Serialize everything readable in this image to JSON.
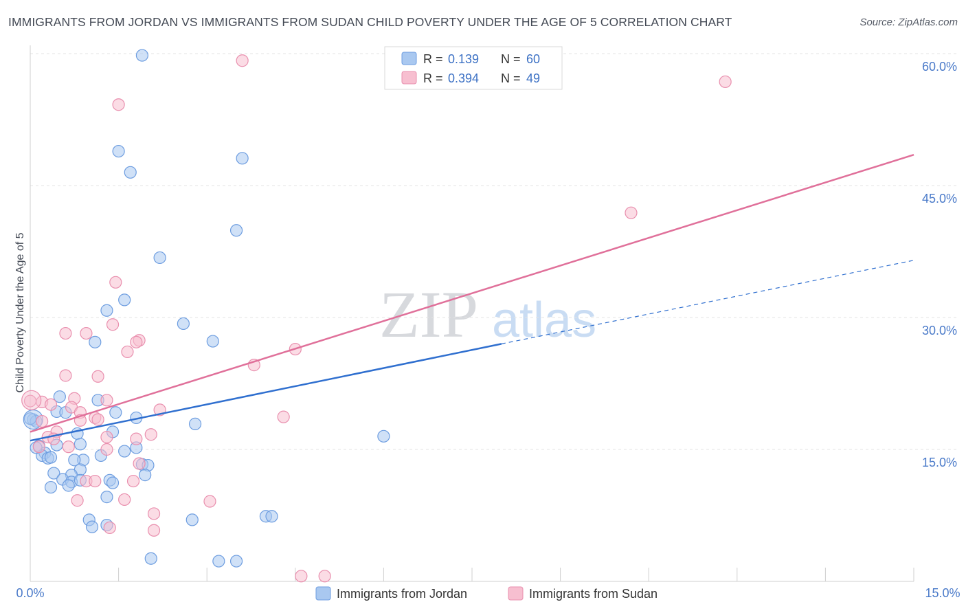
{
  "title": "IMMIGRANTS FROM JORDAN VS IMMIGRANTS FROM SUDAN CHILD POVERTY UNDER THE AGE OF 5 CORRELATION CHART",
  "source": "Source: ZipAtlas.com",
  "watermark": {
    "zip": "ZIP",
    "atlas": "atlas"
  },
  "colors": {
    "jordan_fill": "#a9c8f0",
    "jordan_stroke": "#6d9de0",
    "jordan_line": "#2f6fcf",
    "sudan_fill": "#f7bfd0",
    "sudan_stroke": "#e98fae",
    "sudan_line": "#e0709a",
    "tick_text": "#4a7ac9"
  },
  "legend": {
    "rows": [
      {
        "r_label": "R =",
        "r_value": "0.139",
        "n_label": "N =",
        "n_value": "60"
      },
      {
        "r_label": "R =",
        "r_value": "0.394",
        "n_label": "N =",
        "n_value": "49"
      }
    ]
  },
  "chart_data": {
    "type": "scatter",
    "xlabel": "",
    "ylabel": "Child Poverty Under the Age of 5",
    "xlim": [
      0,
      15
    ],
    "ylim": [
      0,
      60
    ],
    "x_tick_labels": [
      "0.0%",
      "15.0%"
    ],
    "y_ticks": [
      15,
      30,
      45,
      60
    ],
    "y_tick_labels": [
      "15.0%",
      "30.0%",
      "45.0%",
      "60.0%"
    ],
    "series": [
      {
        "name": "Immigrants from Jordan",
        "r": 0.139,
        "n": 60,
        "trend": {
          "x0": 0,
          "y0": 16.0,
          "x1": 8.0,
          "y1": 27.0,
          "dash_x_end": 15,
          "dash_y_end": 36.5
        },
        "points": [
          [
            1.9,
            59.8
          ],
          [
            1.5,
            48.9
          ],
          [
            3.6,
            48.1
          ],
          [
            1.7,
            46.5
          ],
          [
            3.5,
            39.9
          ],
          [
            2.2,
            36.8
          ],
          [
            1.6,
            32.0
          ],
          [
            1.3,
            30.8
          ],
          [
            2.6,
            29.3
          ],
          [
            3.1,
            27.3
          ],
          [
            1.1,
            27.2
          ],
          [
            0.5,
            21.0
          ],
          [
            1.15,
            20.6
          ],
          [
            0.45,
            19.3
          ],
          [
            0.6,
            19.2
          ],
          [
            1.45,
            19.2
          ],
          [
            1.8,
            18.6
          ],
          [
            0.05,
            18.4
          ],
          [
            0.1,
            18.2
          ],
          [
            2.8,
            17.9
          ],
          [
            1.4,
            17.0
          ],
          [
            0.8,
            16.8
          ],
          [
            6.0,
            16.5
          ],
          [
            0.85,
            15.6
          ],
          [
            0.15,
            15.4
          ],
          [
            0.45,
            15.5
          ],
          [
            1.8,
            15.2
          ],
          [
            1.6,
            14.8
          ],
          [
            0.25,
            14.6
          ],
          [
            0.2,
            14.3
          ],
          [
            0.3,
            14.0
          ],
          [
            0.35,
            14.1
          ],
          [
            1.2,
            14.3
          ],
          [
            0.9,
            13.8
          ],
          [
            0.75,
            13.8
          ],
          [
            1.9,
            13.3
          ],
          [
            2.0,
            13.2
          ],
          [
            0.85,
            12.7
          ],
          [
            0.4,
            12.3
          ],
          [
            0.7,
            12.1
          ],
          [
            1.95,
            12.1
          ],
          [
            0.55,
            11.6
          ],
          [
            0.7,
            11.3
          ],
          [
            0.85,
            11.5
          ],
          [
            1.35,
            11.5
          ],
          [
            1.4,
            11.2
          ],
          [
            0.65,
            10.9
          ],
          [
            0.35,
            10.7
          ],
          [
            1.3,
            9.6
          ],
          [
            1.0,
            7.0
          ],
          [
            1.05,
            6.2
          ],
          [
            1.3,
            6.4
          ],
          [
            2.75,
            7.0
          ],
          [
            4.0,
            7.4
          ],
          [
            4.1,
            7.4
          ],
          [
            2.05,
            2.6
          ],
          [
            3.2,
            2.3
          ],
          [
            3.5,
            2.3
          ],
          [
            0.0,
            18.5
          ],
          [
            0.1,
            15.2
          ]
        ]
      },
      {
        "name": "Immigrants from Sudan",
        "r": 0.394,
        "n": 49,
        "trend": {
          "x0": 0,
          "y0": 17.0,
          "x1": 15,
          "y1": 48.5
        },
        "points": [
          [
            3.6,
            59.2
          ],
          [
            1.5,
            54.2
          ],
          [
            11.8,
            56.8
          ],
          [
            10.2,
            41.9
          ],
          [
            1.45,
            34.0
          ],
          [
            1.4,
            29.2
          ],
          [
            0.6,
            28.2
          ],
          [
            0.95,
            28.2
          ],
          [
            1.85,
            27.4
          ],
          [
            1.8,
            27.2
          ],
          [
            1.65,
            26.1
          ],
          [
            4.5,
            26.4
          ],
          [
            3.8,
            24.6
          ],
          [
            0.6,
            23.4
          ],
          [
            1.15,
            23.3
          ],
          [
            0.0,
            20.5
          ],
          [
            0.2,
            20.4
          ],
          [
            0.35,
            20.1
          ],
          [
            0.75,
            20.8
          ],
          [
            1.3,
            20.6
          ],
          [
            0.7,
            19.8
          ],
          [
            0.85,
            19.2
          ],
          [
            2.2,
            19.5
          ],
          [
            0.2,
            18.2
          ],
          [
            0.85,
            18.3
          ],
          [
            1.1,
            18.6
          ],
          [
            1.15,
            18.4
          ],
          [
            4.3,
            18.7
          ],
          [
            0.45,
            17.0
          ],
          [
            0.3,
            16.4
          ],
          [
            0.4,
            16.2
          ],
          [
            1.3,
            16.4
          ],
          [
            1.8,
            16.2
          ],
          [
            2.05,
            16.7
          ],
          [
            0.15,
            15.3
          ],
          [
            0.65,
            15.3
          ],
          [
            1.3,
            15.0
          ],
          [
            1.85,
            13.4
          ],
          [
            0.95,
            11.4
          ],
          [
            1.1,
            11.4
          ],
          [
            1.75,
            11.4
          ],
          [
            0.8,
            9.2
          ],
          [
            1.6,
            9.3
          ],
          [
            3.05,
            9.1
          ],
          [
            2.1,
            7.7
          ],
          [
            1.35,
            6.1
          ],
          [
            2.1,
            5.8
          ],
          [
            4.6,
            0.6
          ],
          [
            5.0,
            0.6
          ]
        ]
      }
    ]
  }
}
